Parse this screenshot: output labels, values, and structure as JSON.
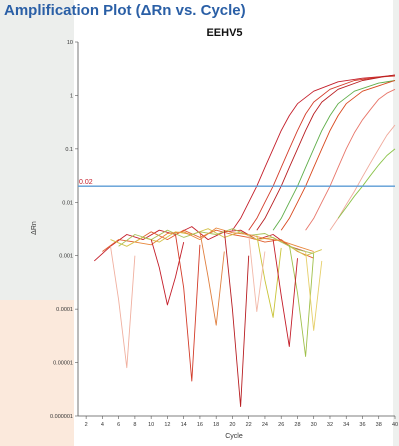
{
  "header": {
    "title": "Amplification Plot (ΔRn vs. Cycle)"
  },
  "chart_data": {
    "type": "line",
    "title": "EEHV5",
    "xlabel": "Cycle",
    "ylabel": "ΔRn",
    "yscale": "log",
    "xlim": [
      1,
      40
    ],
    "ylim": [
      1e-06,
      10
    ],
    "x_ticks": [
      2,
      4,
      6,
      8,
      10,
      12,
      14,
      16,
      18,
      20,
      22,
      24,
      26,
      28,
      30,
      32,
      34,
      36,
      38,
      40
    ],
    "y_ticks": [
      "10",
      "1",
      "0.1",
      "0.01",
      "0.001",
      "0.0001",
      "0.00001",
      "0.000001"
    ],
    "y_tick_values": [
      10,
      1,
      0.1,
      0.01,
      0.001,
      0.0001,
      1e-05,
      1e-06
    ],
    "threshold": {
      "value": 0.02,
      "label": "0.02",
      "color": "#5b9bd5",
      "label_color": "#c41e2a"
    },
    "grid": false,
    "legend": "none",
    "series": [
      {
        "color": "#c41e2a",
        "x": [
          20,
          21,
          22,
          23,
          24,
          25,
          26,
          27,
          28,
          30,
          33,
          36,
          39,
          40
        ],
        "y": [
          0.003,
          0.005,
          0.01,
          0.02,
          0.045,
          0.1,
          0.22,
          0.42,
          0.7,
          1.2,
          1.8,
          2.1,
          2.3,
          2.4
        ]
      },
      {
        "color": "#d33c2a",
        "x": [
          22,
          23,
          24,
          25,
          26,
          27,
          28,
          29,
          30,
          32,
          35,
          38,
          40
        ],
        "y": [
          0.003,
          0.005,
          0.01,
          0.02,
          0.045,
          0.1,
          0.22,
          0.45,
          0.75,
          1.3,
          1.9,
          2.2,
          2.3
        ]
      },
      {
        "color": "#b81e22",
        "x": [
          23,
          24,
          25,
          26,
          27,
          28,
          29,
          30,
          31,
          33,
          36,
          39,
          40
        ],
        "y": [
          0.003,
          0.005,
          0.01,
          0.02,
          0.045,
          0.1,
          0.22,
          0.45,
          0.75,
          1.3,
          1.9,
          2.3,
          2.4
        ]
      },
      {
        "color": "#5fae4a",
        "x": [
          25,
          26,
          27,
          28,
          29,
          30,
          31,
          32,
          33,
          35,
          38,
          40
        ],
        "y": [
          0.003,
          0.005,
          0.01,
          0.02,
          0.045,
          0.1,
          0.22,
          0.42,
          0.7,
          1.2,
          1.7,
          1.9
        ]
      },
      {
        "color": "#d8481e",
        "x": [
          26,
          27,
          28,
          29,
          30,
          31,
          32,
          33,
          34,
          36,
          39,
          40
        ],
        "y": [
          0.003,
          0.005,
          0.01,
          0.02,
          0.045,
          0.1,
          0.22,
          0.42,
          0.7,
          1.2,
          1.7,
          1.9
        ]
      },
      {
        "color": "#e8766a",
        "x": [
          29,
          30,
          31,
          32,
          33,
          34,
          35,
          36,
          37,
          38,
          39,
          40
        ],
        "y": [
          0.003,
          0.005,
          0.01,
          0.02,
          0.045,
          0.1,
          0.2,
          0.35,
          0.55,
          0.85,
          1.1,
          1.3
        ]
      },
      {
        "color": "#f0a99b",
        "x": [
          32,
          33,
          34,
          35,
          36,
          37,
          38,
          39,
          40
        ],
        "y": [
          0.003,
          0.005,
          0.009,
          0.016,
          0.03,
          0.055,
          0.1,
          0.18,
          0.28
        ]
      },
      {
        "color": "#8bc34a",
        "x": [
          33,
          34,
          35,
          36,
          37,
          38,
          39,
          40
        ],
        "y": [
          0.005,
          0.008,
          0.013,
          0.02,
          0.032,
          0.05,
          0.075,
          0.1
        ]
      },
      {
        "color": "#c41e2a",
        "x": [
          3,
          5,
          7,
          9,
          11,
          13,
          15,
          17,
          19,
          21,
          23,
          25,
          27,
          29
        ],
        "y": [
          0.0008,
          0.0015,
          0.0025,
          0.002,
          0.003,
          0.0025,
          0.0035,
          0.002,
          0.0028,
          0.003,
          0.002,
          0.0025,
          0.0015,
          0.0012
        ]
      },
      {
        "color": "#e06030",
        "x": [
          4,
          6,
          8,
          10,
          12,
          14,
          16,
          18,
          20,
          22,
          24,
          26,
          28,
          30
        ],
        "y": [
          0.0012,
          0.002,
          0.0018,
          0.0028,
          0.002,
          0.003,
          0.0022,
          0.003,
          0.0025,
          0.0022,
          0.0018,
          0.002,
          0.0012,
          0.0009
        ]
      },
      {
        "color": "#d4c24a",
        "x": [
          5,
          7,
          9,
          11,
          13,
          15,
          17,
          19,
          21,
          23,
          25,
          27,
          29,
          31
        ],
        "y": [
          0.002,
          0.0015,
          0.0022,
          0.0018,
          0.0028,
          0.0025,
          0.0032,
          0.0022,
          0.0028,
          0.002,
          0.0022,
          0.0015,
          0.001,
          0.0013
        ]
      },
      {
        "color": "#a8c25a",
        "x": [
          6,
          8,
          10,
          12,
          14,
          16,
          18,
          20,
          22,
          24,
          26,
          28,
          30
        ],
        "y": [
          0.0015,
          0.0025,
          0.002,
          0.003,
          0.0022,
          0.0028,
          0.0025,
          0.0032,
          0.0024,
          0.0026,
          0.0018,
          0.0013,
          0.0011
        ]
      },
      {
        "color": "#e8863a",
        "x": [
          8,
          10,
          12,
          14,
          16,
          18,
          20,
          22,
          24,
          26,
          28,
          30
        ],
        "y": [
          0.0018,
          0.0016,
          0.0026,
          0.0028,
          0.002,
          0.0033,
          0.0027,
          0.0025,
          0.0021,
          0.0019,
          0.0015,
          0.0012
        ]
      },
      {
        "color": "#c41e2a",
        "x": [
          10,
          11,
          12,
          13,
          14
        ],
        "y": [
          0.002,
          0.0006,
          0.00012,
          0.0004,
          0.0018
        ]
      },
      {
        "color": "#d33c2a",
        "x": [
          13,
          14,
          15,
          16
        ],
        "y": [
          0.0025,
          0.00025,
          4.5e-06,
          0.0016
        ]
      },
      {
        "color": "#b81e22",
        "x": [
          19,
          20,
          21,
          22
        ],
        "y": [
          0.003,
          0.0001,
          1.5e-06,
          0.001
        ]
      },
      {
        "color": "#f0b0a0",
        "x": [
          5,
          6,
          7,
          8
        ],
        "y": [
          0.0015,
          0.00015,
          8e-06,
          0.001
        ]
      },
      {
        "color": "#e08040",
        "x": [
          16,
          17,
          18,
          19
        ],
        "y": [
          0.0028,
          0.0004,
          5e-05,
          0.0012
        ]
      },
      {
        "color": "#c9c438",
        "x": [
          23,
          24,
          25,
          26
        ],
        "y": [
          0.0024,
          0.00035,
          7e-05,
          0.0014
        ]
      },
      {
        "color": "#9fc04a",
        "x": [
          27,
          28,
          29,
          30
        ],
        "y": [
          0.0016,
          0.0002,
          1.3e-05,
          0.0011
        ]
      },
      {
        "color": "#e6cf6a",
        "x": [
          29,
          30,
          31
        ],
        "y": [
          0.0012,
          4e-05,
          0.0008
        ]
      },
      {
        "color": "#c41e2a",
        "x": [
          25,
          26,
          27,
          28
        ],
        "y": [
          0.002,
          0.00018,
          2e-05,
          0.0009
        ]
      },
      {
        "color": "#f2b8a8",
        "x": [
          22,
          23,
          24
        ],
        "y": [
          0.0025,
          9e-05,
          0.0012
        ]
      }
    ]
  }
}
